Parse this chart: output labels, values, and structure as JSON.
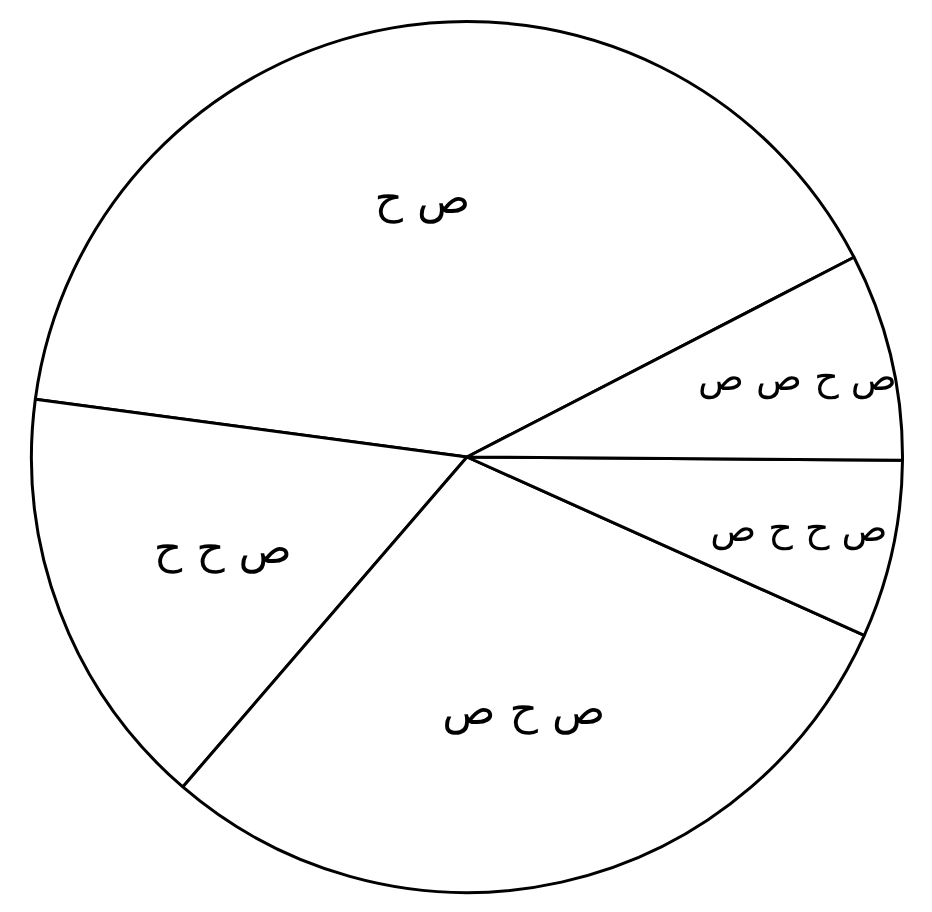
{
  "chart_data": {
    "type": "pie",
    "categories": [
      "ص ح",
      "ص ح ح",
      "ص ح ص",
      "ص ح ح ص",
      "ص ح ص ص"
    ],
    "values": [
      40.3,
      15.8,
      29.6,
      6.6,
      7.7
    ],
    "colors": [
      "#ffffff",
      "#ffffff",
      "#ffffff",
      "#ffffff",
      "#ffffff"
    ]
  }
}
